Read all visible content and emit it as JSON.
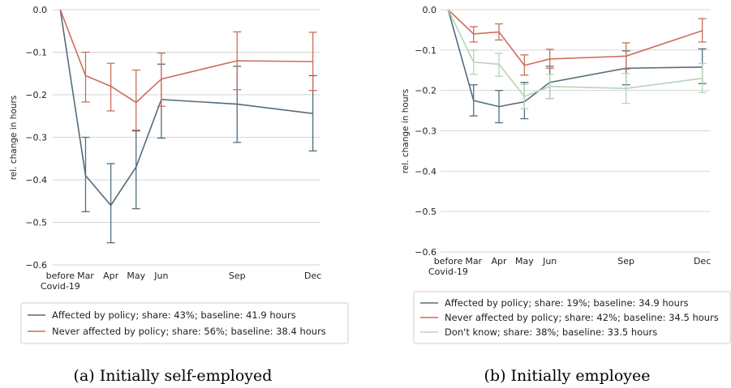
{
  "figure": {
    "captions": [
      "(a) Initially self-employed",
      "(b) Initially employee"
    ]
  },
  "colors": {
    "affected": "#536d7c",
    "never": "#cc6e59",
    "dontknow": "#b7d3b8"
  },
  "chart_data": [
    {
      "type": "line",
      "title": "",
      "caption": "(a) Initially self-employed",
      "ylabel": "rel. change in hours",
      "xlabel": "",
      "x_ticks": [
        {
          "label": "before\nCovid-19",
          "t": 0
        },
        {
          "label": "Mar",
          "t": 1
        },
        {
          "label": "Apr",
          "t": 2
        },
        {
          "label": "May",
          "t": 3
        },
        {
          "label": "Jun",
          "t": 4
        },
        {
          "label": "Sep",
          "t": 7
        },
        {
          "label": "Dec",
          "t": 10
        }
      ],
      "x_range": [
        -0.3,
        10.3
      ],
      "ylim": [
        -0.6,
        0.0
      ],
      "y_ticks": [
        0.0,
        -0.1,
        -0.2,
        -0.3,
        -0.4,
        -0.5,
        -0.6
      ],
      "y_tick_labels": [
        "0.0",
        "−0.1",
        "−0.2",
        "−0.3",
        "−0.4",
        "−0.5",
        "−0.6"
      ],
      "grid": "horizontal",
      "legend_position": "below",
      "series": [
        {
          "name": "Affected by policy; share: 43%; baseline: 41.9 hours",
          "color": "#536d7c",
          "points": [
            {
              "t": 0,
              "y": 0.0,
              "lo": 0.0,
              "hi": 0.0
            },
            {
              "t": 1,
              "y": -0.39,
              "lo": -0.475,
              "hi": -0.3
            },
            {
              "t": 2,
              "y": -0.46,
              "lo": -0.548,
              "hi": -0.362
            },
            {
              "t": 3,
              "y": -0.37,
              "lo": -0.468,
              "hi": -0.285
            },
            {
              "t": 4,
              "y": -0.211,
              "lo": -0.302,
              "hi": -0.128
            },
            {
              "t": 7,
              "y": -0.222,
              "lo": -0.312,
              "hi": -0.133
            },
            {
              "t": 10,
              "y": -0.244,
              "lo": -0.332,
              "hi": -0.155
            }
          ]
        },
        {
          "name": "Never affected by policy; share: 56%; baseline: 38.4 hours",
          "color": "#cc6e59",
          "points": [
            {
              "t": 0,
              "y": 0.0,
              "lo": 0.0,
              "hi": 0.0
            },
            {
              "t": 1,
              "y": -0.155,
              "lo": -0.217,
              "hi": -0.1
            },
            {
              "t": 2,
              "y": -0.18,
              "lo": -0.238,
              "hi": -0.126
            },
            {
              "t": 3,
              "y": -0.218,
              "lo": -0.283,
              "hi": -0.142
            },
            {
              "t": 4,
              "y": -0.163,
              "lo": -0.227,
              "hi": -0.102
            },
            {
              "t": 7,
              "y": -0.12,
              "lo": -0.188,
              "hi": -0.052
            },
            {
              "t": 10,
              "y": -0.122,
              "lo": -0.19,
              "hi": -0.053
            }
          ]
        }
      ]
    },
    {
      "type": "line",
      "title": "",
      "caption": "(b) Initially employee",
      "ylabel": "rel. change in hours",
      "xlabel": "",
      "x_ticks": [
        {
          "label": "before\nCovid-19",
          "t": 0
        },
        {
          "label": "Mar",
          "t": 1
        },
        {
          "label": "Apr",
          "t": 2
        },
        {
          "label": "May",
          "t": 3
        },
        {
          "label": "Jun",
          "t": 4
        },
        {
          "label": "Sep",
          "t": 7
        },
        {
          "label": "Dec",
          "t": 10
        }
      ],
      "x_range": [
        -0.3,
        10.3
      ],
      "ylim": [
        -0.6,
        0.0
      ],
      "y_ticks": [
        0.0,
        -0.1,
        -0.2,
        -0.3,
        -0.4,
        -0.5,
        -0.6
      ],
      "y_tick_labels": [
        "0.0",
        "−0.1",
        "−0.2",
        "−0.3",
        "−0.4",
        "−0.5",
        "−0.6"
      ],
      "grid": "horizontal",
      "legend_position": "below",
      "series": [
        {
          "name": "Affected by policy; share: 19%; baseline: 34.9 hours",
          "color": "#536d7c",
          "points": [
            {
              "t": 0,
              "y": 0.0,
              "lo": 0.0,
              "hi": 0.0
            },
            {
              "t": 1,
              "y": -0.225,
              "lo": -0.263,
              "hi": -0.186
            },
            {
              "t": 2,
              "y": -0.24,
              "lo": -0.28,
              "hi": -0.2
            },
            {
              "t": 3,
              "y": -0.228,
              "lo": -0.27,
              "hi": -0.18
            },
            {
              "t": 4,
              "y": -0.18,
              "lo": -0.22,
              "hi": -0.14
            },
            {
              "t": 7,
              "y": -0.145,
              "lo": -0.186,
              "hi": -0.102
            },
            {
              "t": 10,
              "y": -0.142,
              "lo": -0.183,
              "hi": -0.097
            }
          ]
        },
        {
          "name": "Never affected by policy; share: 42%; baseline: 34.5 hours",
          "color": "#cc6e59",
          "points": [
            {
              "t": 0,
              "y": 0.0,
              "lo": 0.0,
              "hi": 0.0
            },
            {
              "t": 1,
              "y": -0.06,
              "lo": -0.08,
              "hi": -0.042
            },
            {
              "t": 2,
              "y": -0.055,
              "lo": -0.075,
              "hi": -0.035
            },
            {
              "t": 3,
              "y": -0.138,
              "lo": -0.162,
              "hi": -0.112
            },
            {
              "t": 4,
              "y": -0.122,
              "lo": -0.145,
              "hi": -0.098
            },
            {
              "t": 7,
              "y": -0.115,
              "lo": -0.147,
              "hi": -0.082
            },
            {
              "t": 10,
              "y": -0.052,
              "lo": -0.08,
              "hi": -0.022
            }
          ]
        },
        {
          "name": "Don't know; share: 38%; baseline: 33.5 hours",
          "color": "#b7d3b8",
          "points": [
            {
              "t": 0,
              "y": 0.0,
              "lo": 0.0,
              "hi": 0.0
            },
            {
              "t": 1,
              "y": -0.13,
              "lo": -0.16,
              "hi": -0.1
            },
            {
              "t": 2,
              "y": -0.135,
              "lo": -0.165,
              "hi": -0.108
            },
            {
              "t": 3,
              "y": -0.215,
              "lo": -0.245,
              "hi": -0.185
            },
            {
              "t": 4,
              "y": -0.19,
              "lo": -0.22,
              "hi": -0.16
            },
            {
              "t": 7,
              "y": -0.195,
              "lo": -0.232,
              "hi": -0.158
            },
            {
              "t": 10,
              "y": -0.17,
              "lo": -0.205,
              "hi": -0.133
            }
          ]
        }
      ]
    }
  ]
}
